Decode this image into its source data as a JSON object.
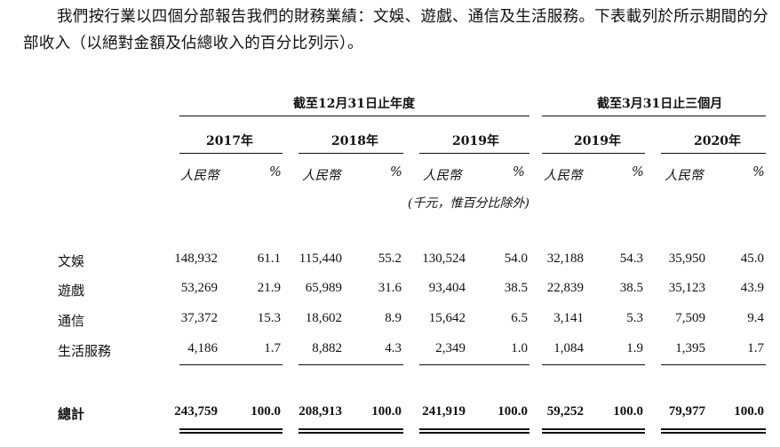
{
  "intro": "我們按行業以四個分部報告我們的財務業績：文娛、遊戲、通信及生活服務。下表載列於所示期間的分部收入（以絕對金額及佔總收入的百分比列示）。",
  "headers": {
    "group1": "截至12月31日止年度",
    "group2": "截至3月31日止三個月",
    "years": [
      "2017年",
      "2018年",
      "2019年",
      "2019年",
      "2020年"
    ],
    "currency": "人民幣",
    "percent": "%",
    "unit_note": "(千元，惟百分比除外)"
  },
  "rows": [
    {
      "label": "文娛",
      "values": [
        "148,932",
        "61.1",
        "115,440",
        "55.2",
        "130,524",
        "54.0",
        "32,188",
        "54.3",
        "35,950",
        "45.0"
      ]
    },
    {
      "label": "遊戲",
      "values": [
        "53,269",
        "21.9",
        "65,989",
        "31.6",
        "93,404",
        "38.5",
        "22,839",
        "38.5",
        "35,123",
        "43.9"
      ]
    },
    {
      "label": "通信",
      "values": [
        "37,372",
        "15.3",
        "18,602",
        "8.9",
        "15,642",
        "6.5",
        "3,141",
        "5.3",
        "7,509",
        "9.4"
      ]
    },
    {
      "label": "生活服務",
      "values": [
        "4,186",
        "1.7",
        "8,882",
        "4.3",
        "2,349",
        "1.0",
        "1,084",
        "1.9",
        "1,395",
        "1.7"
      ]
    }
  ],
  "total": {
    "label": "總計",
    "values": [
      "243,759",
      "100.0",
      "208,913",
      "100.0",
      "241,919",
      "100.0",
      "59,252",
      "100.0",
      "79,977",
      "100.0"
    ]
  }
}
